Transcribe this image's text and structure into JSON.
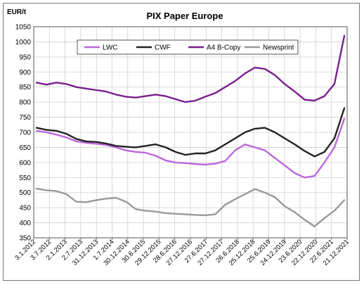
{
  "chart_data": {
    "type": "line",
    "title": "PIX Paper Europe",
    "ylabel": "EUR/t",
    "ylim": [
      350,
      1050
    ],
    "yticks": [
      350,
      400,
      450,
      500,
      550,
      600,
      650,
      700,
      750,
      800,
      850,
      900,
      950,
      1000,
      1050
    ],
    "grid": true,
    "legend_position": "top",
    "x_tick_labels": [
      "3.1.2012",
      "3.7.2012",
      "2.1.2013",
      "2.7.2013",
      "31.12.2013",
      "1.7.2014",
      "30.12.2014",
      "30.6.2015",
      "29.12.2015",
      "28.6.2016",
      "27.12.2016",
      "27.6.2017",
      "27.12.2017",
      "26.6.2018",
      "25.12.2018",
      "25.6.2019",
      "24.12.2019",
      "23.6.2020",
      "22.12.2020",
      "22.6.2021",
      "21.12.2021"
    ],
    "series": [
      {
        "name": "LWC",
        "color": "#bb66dd",
        "values": [
          705,
          700,
          692,
          683,
          670,
          665,
          662,
          658,
          650,
          640,
          635,
          632,
          622,
          607,
          600,
          598,
          595,
          593,
          596,
          605,
          640,
          660,
          650,
          640,
          615,
          590,
          565,
          550,
          555,
          600,
          650,
          745
        ]
      },
      {
        "name": "CWF",
        "color": "#222222",
        "values": [
          715,
          708,
          705,
          695,
          678,
          670,
          668,
          663,
          655,
          652,
          650,
          655,
          660,
          650,
          635,
          625,
          630,
          630,
          640,
          660,
          680,
          700,
          712,
          715,
          700,
          680,
          660,
          638,
          620,
          635,
          680,
          780
        ]
      },
      {
        "name": "A4 B-Copy",
        "color": "#7a1f8f",
        "values": [
          865,
          858,
          865,
          860,
          850,
          845,
          840,
          835,
          825,
          818,
          815,
          820,
          825,
          820,
          810,
          800,
          805,
          818,
          830,
          850,
          870,
          895,
          915,
          910,
          890,
          860,
          835,
          808,
          805,
          820,
          860,
          1020
        ]
      },
      {
        "name": "Newsprint",
        "color": "#999999",
        "values": [
          513,
          508,
          505,
          495,
          470,
          468,
          475,
          480,
          483,
          470,
          445,
          440,
          437,
          432,
          430,
          428,
          426,
          425,
          428,
          460,
          478,
          495,
          512,
          500,
          485,
          455,
          435,
          410,
          388,
          415,
          440,
          475
        ]
      }
    ]
  }
}
